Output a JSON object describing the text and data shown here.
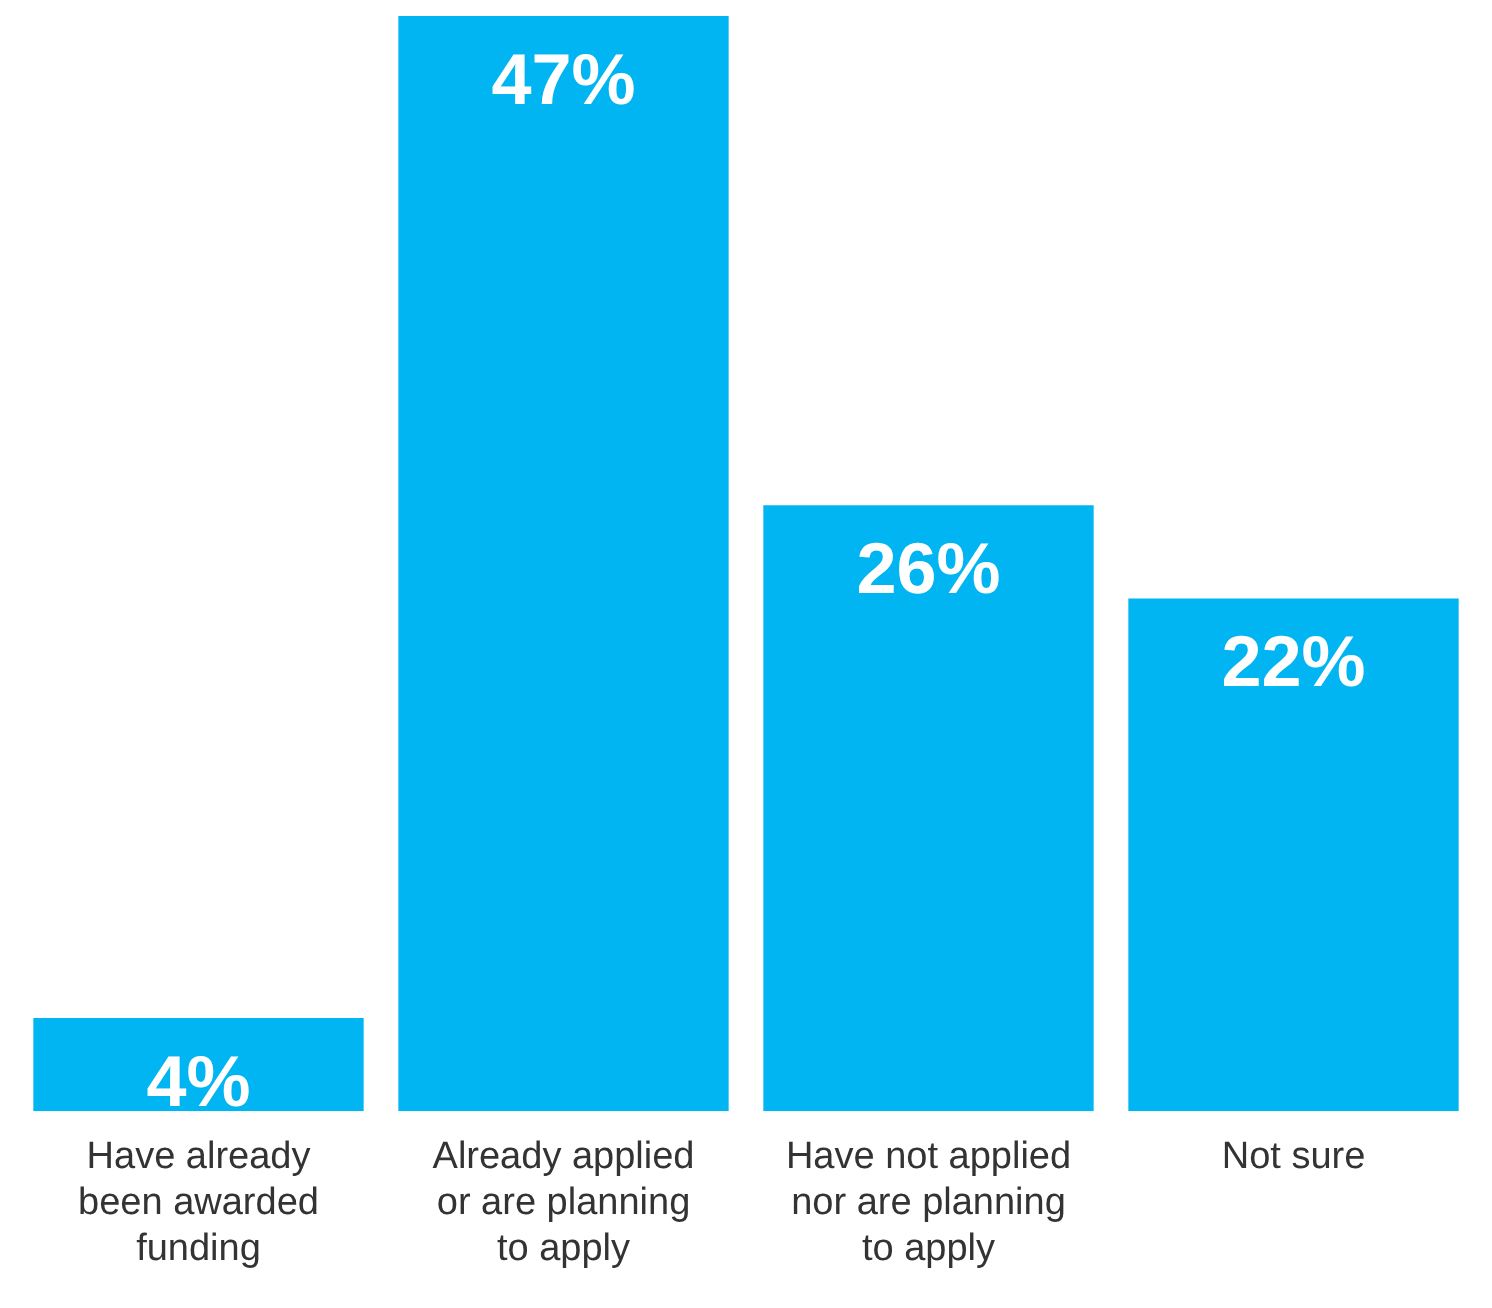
{
  "chart_data": {
    "type": "bar",
    "categories": [
      "Have already been awarded funding",
      "Already applied or are planning to apply",
      "Have not applied nor are planning to apply",
      "Not sure"
    ],
    "values": [
      4,
      47,
      26,
      22
    ],
    "value_labels": [
      "4%",
      "47%",
      "26%",
      "22%"
    ],
    "color": "#00b5f1",
    "grid": false,
    "legend": false
  }
}
